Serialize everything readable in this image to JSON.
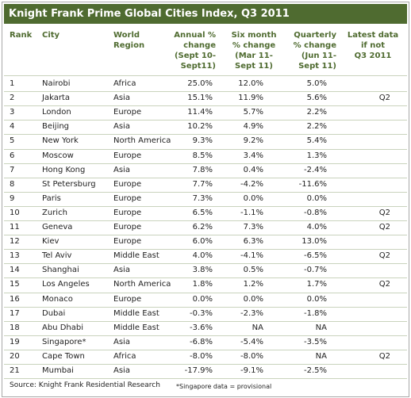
{
  "header": {
    "title": "Knight Frank Prime Global Cities Index, Q3 2011"
  },
  "table": {
    "columns": [
      "Rank",
      "City",
      "World\nRegion",
      "Annual %\nchange\n(Sept 10-\nSept11)",
      "Six month\n% change\n(Mar 11-\nSept 11)",
      "Quarterly\n% change\n(Jun 11-\nSept 11)",
      "Latest data\nif not\nQ3 2011"
    ],
    "rows": [
      [
        "1",
        "Nairobi",
        "Africa",
        "25.0%",
        "12.0%",
        "5.0%",
        null
      ],
      [
        "2",
        "Jakarta",
        "Asia",
        "15.1%",
        "11.9%",
        "5.6%",
        "Q2"
      ],
      [
        "3",
        "London",
        "Europe",
        "11.4%",
        "5.7%",
        "2.2%",
        null
      ],
      [
        "4",
        "Beijing",
        "Asia",
        "10.2%",
        "4.9%",
        "2.2%",
        null
      ],
      [
        "5",
        "New York",
        "North America",
        "9.3%",
        "9.2%",
        "5.4%",
        null
      ],
      [
        "6",
        "Moscow",
        "Europe",
        "8.5%",
        "3.4%",
        "1.3%",
        null
      ],
      [
        "7",
        "Hong Kong",
        "Asia",
        "7.8%",
        "0.4%",
        "-2.4%",
        null
      ],
      [
        "8",
        "St Petersburg",
        "Europe",
        "7.7%",
        "-4.2%",
        "-11.6%",
        null
      ],
      [
        "9",
        "Paris",
        "Europe",
        "7.3%",
        "0.0%",
        "0.0%",
        null
      ],
      [
        "10",
        "Zurich",
        "Europe",
        "6.5%",
        "-1.1%",
        "-0.8%",
        "Q2"
      ],
      [
        "11",
        "Geneva",
        "Europe",
        "6.2%",
        "7.3%",
        "4.0%",
        "Q2"
      ],
      [
        "12",
        "Kiev",
        "Europe",
        "6.0%",
        "6.3%",
        "13.0%",
        null
      ],
      [
        "13",
        "Tel Aviv",
        "Middle East",
        "4.0%",
        "-4.1%",
        "-6.5%",
        "Q2"
      ],
      [
        "14",
        "Shanghai",
        "Asia",
        "3.8%",
        "0.5%",
        "-0.7%",
        null
      ],
      [
        "15",
        "Los Angeles",
        "North America",
        "1.8%",
        "1.2%",
        "1.7%",
        "Q2"
      ],
      [
        "16",
        "Monaco",
        "Europe",
        "0.0%",
        "0.0%",
        "0.0%",
        null
      ],
      [
        "17",
        "Dubai",
        "Middle East",
        "-0.3%",
        "-2.3%",
        "-1.8%",
        null
      ],
      [
        "18",
        "Abu Dhabi",
        "Middle East",
        "-3.6%",
        "NA",
        "NA",
        null
      ],
      [
        "19",
        "Singapore*",
        "Asia",
        "-6.8%",
        "-5.4%",
        "-3.5%",
        null
      ],
      [
        "20",
        "Cape Town",
        "Africa",
        "-8.0%",
        "-8.0%",
        "NA",
        "Q2"
      ],
      [
        "21",
        "Mumbai",
        "Asia",
        "-17.9%",
        "-9.1%",
        "-2.5%",
        null
      ]
    ]
  },
  "footer": {
    "source": "Source: Knight Frank Residential Research",
    "note": "*Singapore data = provisional"
  }
}
